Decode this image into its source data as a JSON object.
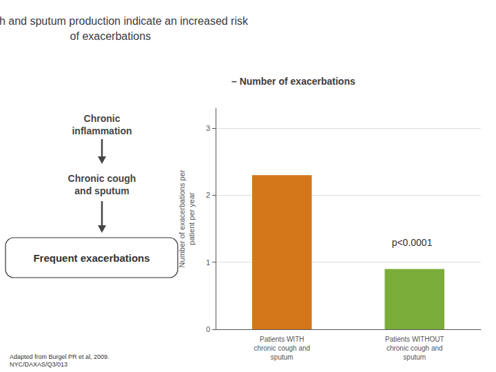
{
  "chart_data": {
    "type": "bar",
    "title": "Cough and sputum production indicate an increased risk\nof exacerbations",
    "subtitle": "– Number of exacerbations",
    "categories": [
      "Patients WITH\nchronic cough and\nsputum",
      "Patients WITHOUT\nchronic cough and\nsputum"
    ],
    "values": [
      2.3,
      0.9
    ],
    "colors": [
      "#D4761A",
      "#7AAD3A"
    ],
    "ylabel": "Number of exacerbations per\npatient per year",
    "ylim": [
      0,
      3.3
    ],
    "yticks": [
      0,
      1,
      2,
      3
    ],
    "grid": true,
    "annotations": [
      "Chronic\ninflammation",
      "Chronic cough\nand sputum",
      "Frequent exacerbations",
      "p<0.0001",
      "Adapted from Burgel PR et al, 2009.\nNYC/DAXAS/Q3/013"
    ]
  }
}
